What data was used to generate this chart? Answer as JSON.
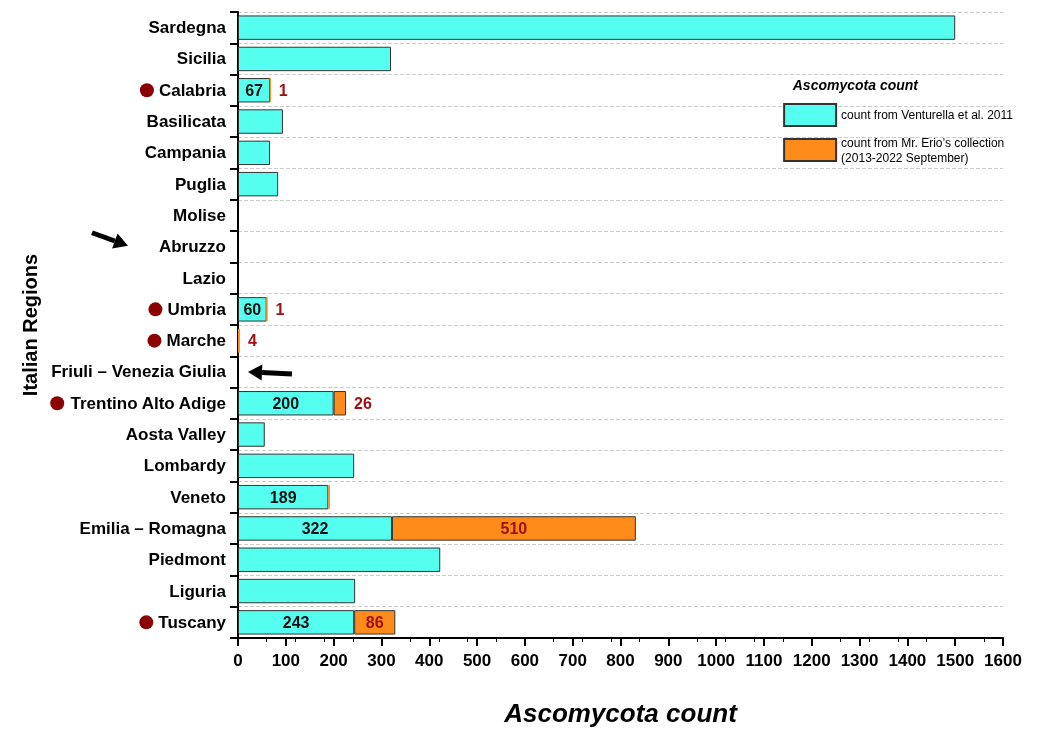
{
  "chart_data": {
    "type": "bar",
    "orientation": "horizontal",
    "stacked": true,
    "categories": [
      "Sardegna",
      "Sicilia",
      "Calabria",
      "Basilicata",
      "Campania",
      "Puglia",
      "Molise",
      "Abruzzo",
      "Lazio",
      "Umbria",
      "Marche",
      "Friuli – Venezia Giulia",
      "Trentino Alto Adige",
      "Aosta Valley",
      "Lombardy",
      "Veneto",
      "Emilia – Romagna",
      "Piedmont",
      "Liguria",
      "Tuscany"
    ],
    "series": [
      {
        "name": "count from Venturella et al. 2011",
        "color": "#55fff0",
        "values": [
          1500,
          320,
          67,
          94,
          67,
          84,
          null,
          null,
          null,
          60,
          null,
          null,
          200,
          56,
          243,
          189,
          322,
          423,
          245,
          243
        ],
        "value_labels": [
          null,
          null,
          "67",
          null,
          null,
          null,
          null,
          null,
          null,
          "60",
          null,
          null,
          "200",
          null,
          null,
          "189",
          "322",
          null,
          null,
          "243"
        ]
      },
      {
        "name": "count from Mr. Erio’s collection\n(2013-2022 September)",
        "color": "#ff8c1a",
        "values": [
          null,
          null,
          1,
          null,
          null,
          null,
          null,
          null,
          null,
          1,
          4,
          null,
          26,
          null,
          null,
          3,
          510,
          null,
          null,
          86
        ],
        "value_labels": [
          null,
          null,
          "1",
          null,
          null,
          null,
          null,
          null,
          null,
          "1",
          "4",
          null,
          "26",
          null,
          null,
          null,
          "510",
          null,
          null,
          "86"
        ]
      }
    ],
    "xlim": [
      0,
      1600
    ],
    "xticks": [
      0,
      100,
      200,
      300,
      400,
      500,
      600,
      700,
      800,
      900,
      1000,
      1100,
      1200,
      1300,
      1400,
      1500,
      1600
    ],
    "xlabel": "Ascomycota count",
    "ylabel": "Italian Regions",
    "legend_title": "Ascomycota count",
    "legend": "top right",
    "grid": "y"
  }
}
